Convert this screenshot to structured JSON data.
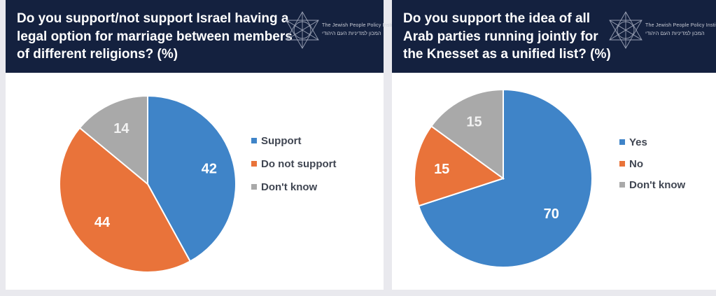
{
  "logo": {
    "english": "The Jewish People Policy Institute",
    "hebrew": "המכון למדיניות העם היהודי"
  },
  "colors": {
    "header_bg": "#14213f",
    "blue": "#3f84c8",
    "orange": "#e9733a",
    "gray": "#a9a9a9",
    "label_light": "#ffffff",
    "label_gray": "#f2f2f2"
  },
  "chart_data": [
    {
      "type": "pie",
      "title": "Do you support/not support Israel having a\nlegal option for marriage between members\nof different religions? (%)",
      "categories": [
        "Support",
        "Do not support",
        "Don't know"
      ],
      "values": [
        42,
        44,
        14
      ],
      "colors": [
        "#3f84c8",
        "#e9733a",
        "#a9a9a9"
      ],
      "legend_position": "right",
      "start_angle_deg": 0,
      "direction": "clockwise"
    },
    {
      "type": "pie",
      "title": "Do you support the idea of all\nArab parties running jointly for\nthe Knesset as a unified list? (%)",
      "categories": [
        "Yes",
        "No",
        "Don't know"
      ],
      "values": [
        70,
        15,
        15
      ],
      "colors": [
        "#3f84c8",
        "#e9733a",
        "#a9a9a9"
      ],
      "legend_position": "right",
      "start_angle_deg": 0,
      "direction": "clockwise"
    }
  ]
}
